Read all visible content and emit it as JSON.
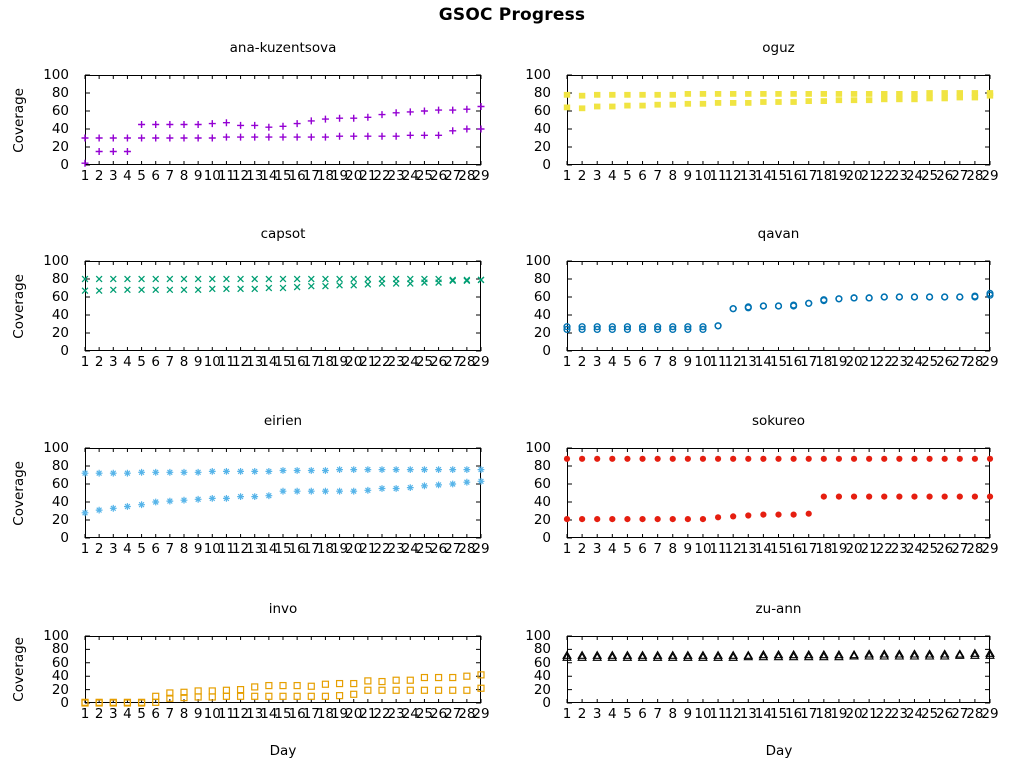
{
  "page": {
    "title": "GSOC Progress",
    "ylabel": "Coverage",
    "xlabel": "Day"
  },
  "axes": {
    "xticks": [
      1,
      2,
      3,
      4,
      5,
      6,
      7,
      8,
      9,
      10,
      11,
      12,
      13,
      14,
      15,
      16,
      17,
      18,
      19,
      20,
      21,
      22,
      23,
      24,
      25,
      26,
      27,
      28,
      29
    ],
    "yticks": [
      0,
      20,
      40,
      60,
      80,
      100
    ],
    "xlim": [
      1,
      29
    ],
    "ylim": [
      0,
      100
    ],
    "grid": false,
    "legend": "none"
  },
  "chart_data": [
    {
      "type": "scatter",
      "title": "ana-kuzentsova",
      "marker": "plus",
      "color": "#9400d3",
      "series": [
        {
          "values": [
            30,
            30,
            30,
            30,
            45,
            45,
            45,
            45,
            45,
            46,
            47,
            44,
            44,
            42,
            43,
            46,
            49,
            51,
            52,
            52,
            53,
            56,
            58,
            59,
            60,
            61,
            61,
            62,
            65
          ]
        },
        {
          "values": [
            2,
            15,
            15,
            15,
            30,
            30,
            30,
            30,
            30,
            30,
            31,
            31,
            31,
            31,
            31,
            31,
            31,
            31,
            32,
            32,
            32,
            32,
            32,
            33,
            33,
            33,
            38,
            40,
            40
          ]
        }
      ]
    },
    {
      "type": "scatter",
      "title": "oguz",
      "marker": "filled-square",
      "color": "#f0e442",
      "series": [
        {
          "values": [
            78,
            77,
            78,
            78,
            78,
            78,
            78,
            78,
            79,
            79,
            79,
            79,
            79,
            79,
            79,
            79,
            79,
            79,
            79,
            79,
            79,
            79,
            79,
            79,
            80,
            80,
            80,
            80,
            80
          ]
        },
        {
          "values": [
            64,
            63,
            65,
            65,
            66,
            66,
            67,
            67,
            68,
            68,
            69,
            69,
            69,
            70,
            70,
            70,
            71,
            71,
            72,
            72,
            72,
            73,
            73,
            73,
            74,
            74,
            75,
            75,
            77
          ]
        }
      ]
    },
    {
      "type": "scatter",
      "title": "capsot",
      "marker": "cross",
      "color": "#009e73",
      "series": [
        {
          "values": [
            80,
            80,
            80,
            80,
            80,
            80,
            80,
            80,
            80,
            80,
            80,
            80,
            80,
            80,
            80,
            80,
            80,
            80,
            80,
            80,
            80,
            80,
            80,
            80,
            80,
            80,
            79,
            79,
            79
          ]
        },
        {
          "values": [
            67,
            67,
            68,
            68,
            68,
            68,
            68,
            68,
            68,
            69,
            69,
            69,
            69,
            70,
            70,
            71,
            72,
            72,
            73,
            73,
            74,
            75,
            75,
            75,
            76,
            76,
            78,
            78,
            79
          ]
        }
      ]
    },
    {
      "type": "scatter",
      "title": "qavan",
      "marker": "open-circle",
      "color": "#0072b2",
      "series": [
        {
          "values": [
            27,
            27,
            27,
            27,
            27,
            27,
            27,
            27,
            27,
            27,
            28,
            47,
            49,
            50,
            50,
            51,
            53,
            57,
            58,
            59,
            59,
            60,
            60,
            60,
            60,
            60,
            60,
            61,
            64
          ]
        },
        {
          "values": [
            24,
            24,
            24,
            24,
            24,
            24,
            24,
            24,
            24,
            24,
            28,
            47,
            48,
            50,
            50,
            50,
            53,
            56,
            58,
            59,
            59,
            60,
            60,
            60,
            60,
            60,
            60,
            60,
            62
          ]
        }
      ]
    },
    {
      "type": "scatter",
      "title": "eirien",
      "marker": "asterisk",
      "color": "#56b4e9",
      "series": [
        {
          "values": [
            72,
            72,
            72,
            72,
            73,
            73,
            73,
            73,
            73,
            74,
            74,
            74,
            74,
            74,
            75,
            75,
            75,
            75,
            76,
            76,
            76,
            76,
            76,
            76,
            76,
            76,
            76,
            76,
            76
          ]
        },
        {
          "values": [
            28,
            31,
            33,
            35,
            37,
            40,
            41,
            42,
            43,
            44,
            44,
            46,
            46,
            47,
            52,
            52,
            52,
            52,
            52,
            52,
            53,
            55,
            55,
            56,
            58,
            59,
            60,
            62,
            63
          ]
        }
      ]
    },
    {
      "type": "scatter",
      "title": "sokureo",
      "marker": "filled-circle",
      "color": "#e51e10",
      "series": [
        {
          "values": [
            88,
            88,
            88,
            88,
            88,
            88,
            88,
            88,
            88,
            88,
            88,
            88,
            88,
            88,
            88,
            88,
            88,
            88,
            88,
            88,
            88,
            88,
            88,
            88,
            88,
            88,
            88,
            88,
            88
          ]
        },
        {
          "values": [
            21,
            21,
            21,
            21,
            21,
            21,
            21,
            21,
            21,
            21,
            23,
            24,
            25,
            26,
            26,
            26,
            27,
            46,
            46,
            46,
            46,
            46,
            46,
            46,
            46,
            46,
            46,
            46,
            46
          ]
        }
      ]
    },
    {
      "type": "scatter",
      "title": "invo",
      "marker": "open-square",
      "color": "#e69f00",
      "series": [
        {
          "values": [
            1,
            1,
            1,
            1,
            1,
            10,
            15,
            16,
            18,
            18,
            19,
            20,
            24,
            26,
            26,
            26,
            25,
            28,
            29,
            29,
            33,
            32,
            34,
            34,
            38,
            38,
            38,
            40,
            42
          ]
        },
        {
          "values": [
            0,
            0,
            0,
            0,
            0,
            1,
            7,
            8,
            9,
            9,
            10,
            10,
            10,
            10,
            10,
            10,
            10,
            10,
            11,
            13,
            19,
            19,
            19,
            19,
            19,
            19,
            19,
            19,
            22
          ]
        }
      ]
    },
    {
      "type": "scatter",
      "title": "zu-ann",
      "marker": "open-triangle",
      "color": "#000000",
      "series": [
        {
          "values": [
            71,
            71,
            71,
            71,
            71,
            71,
            71,
            71,
            71,
            71,
            71,
            71,
            71,
            72,
            72,
            72,
            72,
            72,
            72,
            72,
            73,
            73,
            73,
            73,
            73,
            73,
            73,
            74,
            74
          ]
        },
        {
          "values": [
            68,
            68,
            68,
            68,
            68,
            68,
            68,
            68,
            68,
            68,
            68,
            68,
            69,
            69,
            69,
            69,
            69,
            69,
            69,
            70,
            70,
            70,
            70,
            70,
            70,
            70,
            71,
            71,
            71
          ]
        }
      ]
    }
  ]
}
